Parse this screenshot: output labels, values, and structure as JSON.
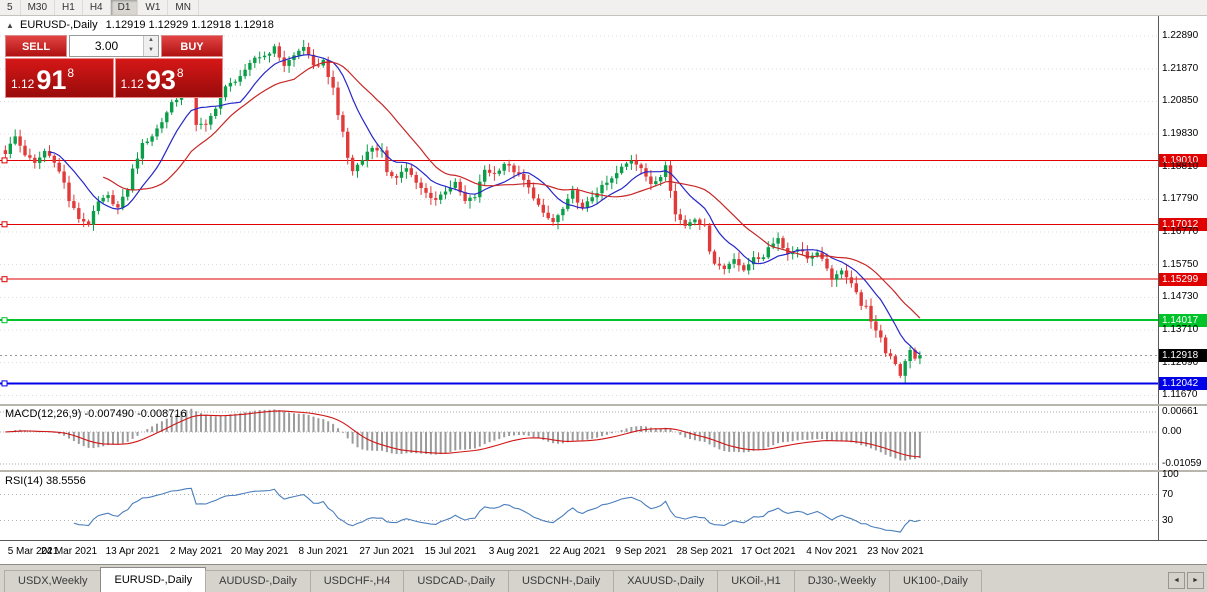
{
  "toolbar": {
    "timeframes": [
      {
        "label": "5"
      },
      {
        "label": "M30"
      },
      {
        "label": "H1"
      },
      {
        "label": "H4"
      },
      {
        "label": "D1",
        "active": true
      },
      {
        "label": "W1"
      },
      {
        "label": "MN"
      }
    ]
  },
  "symbol_info": {
    "marker": "▲",
    "symbol": "EURUSD-,Daily",
    "ohlc": "1.12919 1.12929 1.12918 1.12918"
  },
  "trade": {
    "sell_label": "SELL",
    "buy_label": "BUY",
    "volume": "3.00",
    "spin_up": "▲",
    "spin_down": "▼",
    "sell_price": {
      "prefix": "1.12",
      "big": "91",
      "sup": "8"
    },
    "buy_price": {
      "prefix": "1.12",
      "big": "93",
      "sup": "8"
    }
  },
  "panels": {
    "macd_title": "MACD(12,26,9) -0.007490 -0.008716",
    "rsi_title": "RSI(14) 38.5556"
  },
  "tab_scroll": {
    "left": "◄",
    "right": "►"
  },
  "tabs": [
    {
      "label": "USDX,Weekly"
    },
    {
      "label": "EURUSD-,Daily",
      "active": true
    },
    {
      "label": "AUDUSD-,Daily"
    },
    {
      "label": "USDCHF-,H4"
    },
    {
      "label": "USDCAD-,Daily"
    },
    {
      "label": "USDCNH-,Daily"
    },
    {
      "label": "XAUUSD-,Daily"
    },
    {
      "label": "UKOil-,H1"
    },
    {
      "label": "DJ30-,Weekly"
    },
    {
      "label": "UK100-,Daily"
    }
  ],
  "chart_data": {
    "type": "candlestick",
    "symbol": "EURUSD",
    "timeframe": "Daily",
    "title": "EURUSD-,Daily",
    "bars": 188,
    "bar_width": 4.89,
    "ylim": [
      1.114,
      1.2352
    ],
    "noise": 0.0013,
    "wick": 0.0019,
    "ma_fast": 10,
    "ma_slow": 21,
    "bid": 1.12918,
    "colors": {
      "up": "#0a9e48",
      "down": "#e03a3a",
      "ma_fast": "#2727c8",
      "ma_slow": "#c82727",
      "macd_hist": "#9b9b9b",
      "macd_signal": "#d01515",
      "rsi": "#4a7ebb",
      "grid": "#dddddd"
    },
    "hlines": [
      {
        "value": 1.1901,
        "color": "#e00000",
        "width": 1
      },
      {
        "value": 1.17012,
        "color": "#e00000",
        "width": 1
      },
      {
        "value": 1.15299,
        "color": "#e00000",
        "width": 1
      },
      {
        "value": 1.14017,
        "color": "#00c32a",
        "width": 2
      },
      {
        "value": 1.12042,
        "color": "#0000e8",
        "width": 2
      }
    ],
    "price_axis_labels": [
      {
        "text": "1.22890",
        "value": 1.2289,
        "style": "plain"
      },
      {
        "text": "1.21870",
        "value": 1.2187,
        "style": "plain"
      },
      {
        "text": "1.20850",
        "value": 1.2085,
        "style": "plain"
      },
      {
        "text": "1.19830",
        "value": 1.1983,
        "style": "plain"
      },
      {
        "text": "1.19010",
        "value": 1.1901,
        "style": "red"
      },
      {
        "text": "1.18810",
        "value": 1.1881,
        "style": "plain"
      },
      {
        "text": "1.17790",
        "value": 1.1779,
        "style": "plain"
      },
      {
        "text": "1.17012",
        "value": 1.17012,
        "style": "red"
      },
      {
        "text": "1.16770",
        "value": 1.1677,
        "style": "plain"
      },
      {
        "text": "1.15750",
        "value": 1.1575,
        "style": "plain"
      },
      {
        "text": "1.15299",
        "value": 1.15299,
        "style": "red"
      },
      {
        "text": "1.14730",
        "value": 1.1473,
        "style": "plain"
      },
      {
        "text": "1.14017",
        "value": 1.14017,
        "style": "green"
      },
      {
        "text": "1.13710",
        "value": 1.1371,
        "style": "plain"
      },
      {
        "text": "1.12918",
        "value": 1.12918,
        "style": "black"
      },
      {
        "text": "1.12690",
        "value": 1.1269,
        "style": "plain"
      },
      {
        "text": "1.12042",
        "value": 1.12042,
        "style": "blue"
      },
      {
        "text": "1.11670",
        "value": 1.1167,
        "style": "plain"
      }
    ],
    "label_indices": [
      0,
      13,
      26,
      39,
      52,
      65,
      78,
      91,
      104,
      117,
      130,
      143,
      156,
      169,
      182
    ],
    "dates": [
      "5 Mar 2021",
      "24 Mar 2021",
      "13 Apr 2021",
      "2 May 2021",
      "20 May 2021",
      "8 Jun 2021",
      "27 Jun 2021",
      "15 Jul 2021",
      "3 Aug 2021",
      "22 Aug 2021",
      "9 Sep 2021",
      "28 Sep 2021",
      "17 Oct 2021",
      "4 Nov 2021",
      "23 Nov 2021"
    ],
    "anchors": [
      [
        0,
        1.1925
      ],
      [
        2,
        1.1975
      ],
      [
        4,
        1.192
      ],
      [
        6,
        1.189
      ],
      [
        8,
        1.193
      ],
      [
        10,
        1.19
      ],
      [
        12,
        1.183
      ],
      [
        13,
        1.1775
      ],
      [
        15,
        1.172
      ],
      [
        17,
        1.1703
      ],
      [
        19,
        1.177
      ],
      [
        21,
        1.1788
      ],
      [
        23,
        1.1752
      ],
      [
        25,
        1.1812
      ],
      [
        26,
        1.1872
      ],
      [
        28,
        1.195
      ],
      [
        30,
        1.1978
      ],
      [
        32,
        1.2022
      ],
      [
        34,
        1.2082
      ],
      [
        36,
        1.2108
      ],
      [
        38,
        1.2148
      ],
      [
        39,
        1.2015
      ],
      [
        41,
        1.2008
      ],
      [
        43,
        1.2068
      ],
      [
        45,
        1.2128
      ],
      [
        47,
        1.2152
      ],
      [
        49,
        1.2178
      ],
      [
        51,
        1.2222
      ],
      [
        53,
        1.2228
      ],
      [
        55,
        1.2252
      ],
      [
        57,
        1.2198
      ],
      [
        59,
        1.2228
      ],
      [
        61,
        1.2258
      ],
      [
        63,
        1.2192
      ],
      [
        65,
        1.2212
      ],
      [
        67,
        1.2122
      ],
      [
        68,
        1.2042
      ],
      [
        69,
        1.1992
      ],
      [
        70,
        1.1908
      ],
      [
        71,
        1.1868
      ],
      [
        73,
        1.1908
      ],
      [
        75,
        1.1942
      ],
      [
        77,
        1.1928
      ],
      [
        78,
        1.1858
      ],
      [
        80,
        1.1852
      ],
      [
        82,
        1.1878
      ],
      [
        84,
        1.1828
      ],
      [
        86,
        1.1798
      ],
      [
        88,
        1.1778
      ],
      [
        90,
        1.1808
      ],
      [
        92,
        1.1828
      ],
      [
        94,
        1.1772
      ],
      [
        96,
        1.1788
      ],
      [
        98,
        1.1872
      ],
      [
        100,
        1.1858
      ],
      [
        102,
        1.1892
      ],
      [
        104,
        1.1868
      ],
      [
        106,
        1.1838
      ],
      [
        108,
        1.1788
      ],
      [
        110,
        1.1732
      ],
      [
        112,
        1.1708
      ],
      [
        114,
        1.1748
      ],
      [
        116,
        1.1802
      ],
      [
        118,
        1.1748
      ],
      [
        120,
        1.1788
      ],
      [
        122,
        1.1818
      ],
      [
        124,
        1.1842
      ],
      [
        126,
        1.1878
      ],
      [
        128,
        1.1902
      ],
      [
        130,
        1.1882
      ],
      [
        132,
        1.1822
      ],
      [
        134,
        1.1852
      ],
      [
        135,
        1.1892
      ],
      [
        136,
        1.1812
      ],
      [
        137,
        1.1732
      ],
      [
        139,
        1.1698
      ],
      [
        141,
        1.1722
      ],
      [
        143,
        1.1692
      ],
      [
        144,
        1.1622
      ],
      [
        145,
        1.1582
      ],
      [
        147,
        1.1562
      ],
      [
        149,
        1.1598
      ],
      [
        151,
        1.1552
      ],
      [
        153,
        1.1602
      ],
      [
        155,
        1.1592
      ],
      [
        156,
        1.1632
      ],
      [
        158,
        1.1658
      ],
      [
        160,
        1.1608
      ],
      [
        162,
        1.1628
      ],
      [
        164,
        1.1598
      ],
      [
        166,
        1.1608
      ],
      [
        168,
        1.1568
      ],
      [
        169,
        1.1522
      ],
      [
        171,
        1.1562
      ],
      [
        173,
        1.1518
      ],
      [
        175,
        1.1452
      ],
      [
        176,
        1.1442
      ],
      [
        177,
        1.1392
      ],
      [
        178,
        1.1372
      ],
      [
        179,
        1.1348
      ],
      [
        180,
        1.1302
      ],
      [
        181,
        1.1292
      ],
      [
        182,
        1.1268
      ],
      [
        183,
        1.1225
      ],
      [
        184,
        1.1272
      ],
      [
        185,
        1.1312
      ],
      [
        186,
        1.1282
      ],
      [
        187,
        1.1292
      ]
    ],
    "indicators": {
      "macd": {
        "fast": 12,
        "slow": 26,
        "signal": 9,
        "value": -0.00749,
        "signal_value": -0.008716,
        "ylim": [
          -0.0125,
          0.0085
        ],
        "axis_labels": [
          {
            "text": "0.00661",
            "value": 0.00661,
            "style": "plain"
          },
          {
            "text": "0.00",
            "value": 0,
            "style": "plain"
          },
          {
            "text": "-0.01059",
            "value": -0.01059,
            "style": "plain"
          }
        ]
      },
      "rsi": {
        "period": 14,
        "value": 38.5556,
        "ylim": [
          0,
          105
        ],
        "levels": [
          70,
          30
        ],
        "axis_labels": [
          {
            "text": "100",
            "value": 100,
            "style": "plain"
          },
          {
            "text": "70",
            "value": 70,
            "style": "plain"
          },
          {
            "text": "30",
            "value": 30,
            "style": "plain"
          }
        ]
      }
    }
  }
}
